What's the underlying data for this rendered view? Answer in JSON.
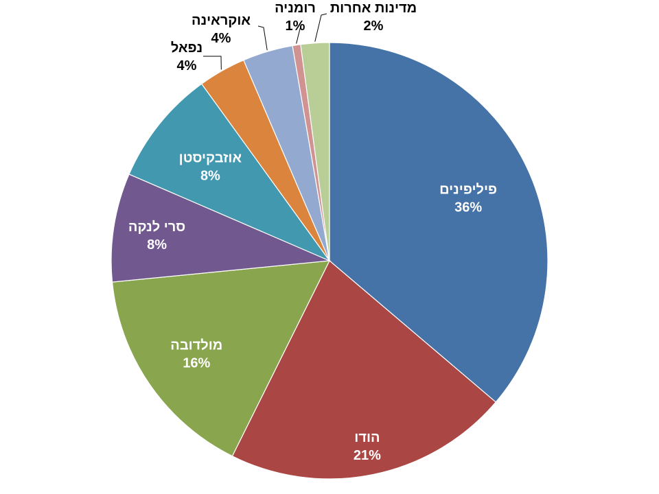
{
  "chart_data": {
    "type": "pie",
    "title": "",
    "slices": [
      {
        "label": "פיליפינים",
        "value": 36,
        "value_label": "36%",
        "color": "#4572A7",
        "label_position": "inside",
        "label_color": "#ffffff"
      },
      {
        "label": "הודו",
        "value": 21,
        "value_label": "21%",
        "color": "#AA4643",
        "label_position": "inside",
        "label_color": "#ffffff"
      },
      {
        "label": "מולדובה",
        "value": 16,
        "value_label": "16%",
        "color": "#89A54E",
        "label_position": "inside",
        "label_color": "#ffffff"
      },
      {
        "label": "סרי לנקה",
        "value": 8,
        "value_label": "8%",
        "color": "#71588F",
        "label_position": "inside",
        "label_color": "#ffffff"
      },
      {
        "label": "אוזבקיסטן",
        "value": 8.5,
        "value_label": "8%",
        "color": "#4198AF",
        "label_position": "inside",
        "label_color": "#ffffff"
      },
      {
        "label": "נפאל",
        "value": 3.5,
        "value_label": "4%",
        "color": "#DB843D",
        "label_position": "outside",
        "label_color": "#000000"
      },
      {
        "label": "אוקראינה",
        "value": 3.7,
        "value_label": "4%",
        "color": "#93A9CF",
        "label_position": "outside",
        "label_color": "#000000"
      },
      {
        "label": "רומניה",
        "value": 0.6,
        "value_label": "1%",
        "color": "#D19392",
        "label_position": "outside",
        "label_color": "#000000"
      },
      {
        "label": "מדינות אחרות",
        "value": 2.1,
        "value_label": "2%",
        "color": "#B9CD96",
        "label_position": "outside",
        "label_color": "#000000"
      }
    ]
  }
}
